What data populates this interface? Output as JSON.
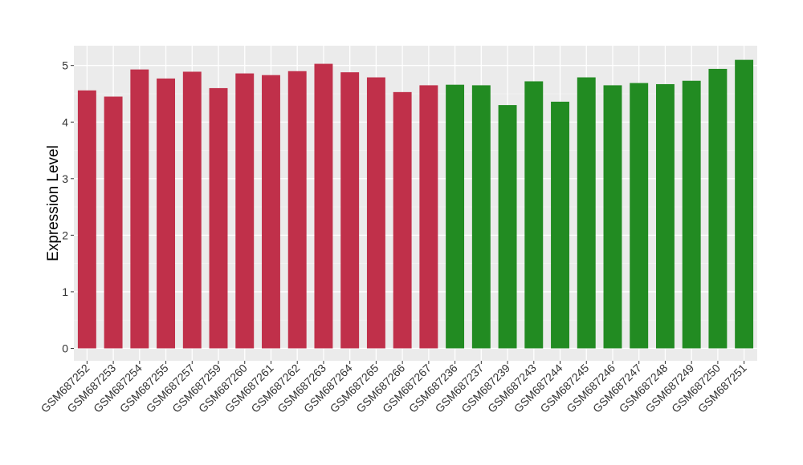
{
  "chart_data": {
    "type": "bar",
    "title": "",
    "xlabel": "",
    "ylabel": "Expression Level",
    "ylim": [
      -0.22,
      5.35
    ],
    "yticks": [
      0,
      1,
      2,
      3,
      4,
      5
    ],
    "grid": true,
    "legend": "none",
    "categories": [
      "GSM687252",
      "GSM687253",
      "GSM687254",
      "GSM687255",
      "GSM687257",
      "GSM687259",
      "GSM687260",
      "GSM687261",
      "GSM687262",
      "GSM687263",
      "GSM687264",
      "GSM687265",
      "GSM687266",
      "GSM687267",
      "GSM687236",
      "GSM687237",
      "GSM687239",
      "GSM687243",
      "GSM687244",
      "GSM687245",
      "GSM687246",
      "GSM687247",
      "GSM687248",
      "GSM687249",
      "GSM687250",
      "GSM687251"
    ],
    "values": [
      4.56,
      4.45,
      4.93,
      4.77,
      4.89,
      4.6,
      4.86,
      4.83,
      4.9,
      5.03,
      4.88,
      4.79,
      4.53,
      4.65,
      4.66,
      4.65,
      4.3,
      4.72,
      4.36,
      4.79,
      4.65,
      4.69,
      4.67,
      4.73,
      4.94,
      5.1
    ],
    "bar_colors": [
      "#c0304a",
      "#c0304a",
      "#c0304a",
      "#c0304a",
      "#c0304a",
      "#c0304a",
      "#c0304a",
      "#c0304a",
      "#c0304a",
      "#c0304a",
      "#c0304a",
      "#c0304a",
      "#c0304a",
      "#c0304a",
      "#228b22",
      "#228b22",
      "#228b22",
      "#228b22",
      "#228b22",
      "#228b22",
      "#228b22",
      "#228b22",
      "#228b22",
      "#228b22",
      "#228b22",
      "#228b22"
    ],
    "colors": {
      "panel_background": "#ebebeb",
      "grid_major": "#ffffff",
      "grid_minor": "#f5f5f5",
      "tick_text": "#333333"
    }
  }
}
